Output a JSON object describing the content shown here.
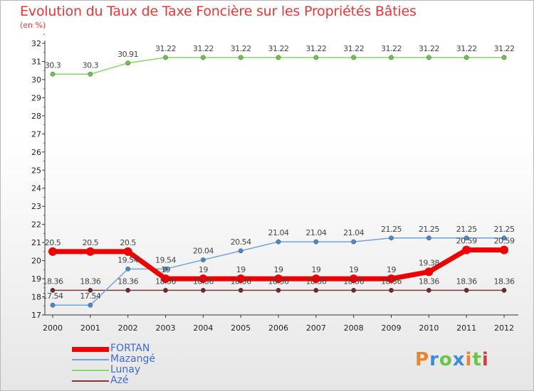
{
  "header": {
    "title": "Evolution du Taux de Taxe Foncière sur les Propriétés Bâties",
    "subtitle": "(en %)"
  },
  "colors": {
    "title": "#e03a3a",
    "axis": "#333333",
    "tick_label": "#222222",
    "data_label": "#444444"
  },
  "logo": {
    "letters": [
      "P",
      "r",
      "o",
      "x",
      "i",
      "t",
      "i"
    ],
    "colors": [
      "#e8842a",
      "#3a8fd8",
      "#6cc24a",
      "#3a8fd8",
      "#e8842a",
      "#6cc24a",
      "#d93a3a"
    ]
  },
  "chart_data": {
    "type": "line",
    "x": [
      "2000",
      "2001",
      "2002",
      "2003",
      "2004",
      "2005",
      "2006",
      "2007",
      "2008",
      "2009",
      "2010",
      "2011",
      "2012"
    ],
    "ylim": [
      17,
      32
    ],
    "yticks": [
      17,
      18,
      19,
      20,
      21,
      22,
      23,
      24,
      25,
      26,
      27,
      28,
      29,
      30,
      31,
      32
    ],
    "grid": false,
    "legend_position": "bottom-left",
    "series": [
      {
        "name": "Lunay",
        "color": "#88d86a",
        "marker": "#6cc24a",
        "width": 1.5,
        "values": [
          30.3,
          30.3,
          30.91,
          31.22,
          31.22,
          31.22,
          31.22,
          31.22,
          31.22,
          31.22,
          31.22,
          31.22,
          31.22
        ],
        "labels": [
          "30.3",
          "30.3",
          "30.91",
          "31.22",
          "31.22",
          "31.22",
          "31.22",
          "31.22",
          "31.22",
          "31.22",
          "31.22",
          "31.22",
          "31.22"
        ]
      },
      {
        "name": "Azé",
        "color": "#7a3a3a",
        "marker": "#6a2a2a",
        "width": 1.5,
        "values": [
          18.36,
          18.36,
          18.36,
          18.36,
          18.36,
          18.36,
          18.36,
          18.36,
          18.36,
          18.36,
          18.36,
          18.36,
          18.36
        ],
        "labels": [
          "18.36",
          "18.36",
          "18.36",
          "18.36",
          "18.36",
          "18.36",
          "18.36",
          "18.36",
          "18.36",
          "18.36",
          "18.36",
          "18.36",
          "18.36"
        ]
      },
      {
        "name": "Mazangé",
        "color": "#6fa4d8",
        "marker": "#4a86c8",
        "width": 1.5,
        "values": [
          17.54,
          17.54,
          19.54,
          19.54,
          20.04,
          20.54,
          21.04,
          21.04,
          21.04,
          21.25,
          21.25,
          21.25,
          21.25
        ],
        "labels": [
          "17.54",
          "17.54",
          "19.54",
          "19.54",
          "20.04",
          "20.54",
          "21.04",
          "21.04",
          "21.04",
          "21.25",
          "21.25",
          "21.25",
          "21.25"
        ]
      },
      {
        "name": "FORTAN",
        "color": "#ee0000",
        "marker": "#ee0000",
        "width": 7,
        "values": [
          20.5,
          20.5,
          20.5,
          19,
          19,
          19,
          19,
          19,
          19,
          19,
          19.38,
          20.59,
          20.59
        ],
        "labels": [
          "20.5",
          "20.5",
          "20.5",
          "19",
          "19",
          "19",
          "19",
          "19",
          "19",
          "19",
          "19.38",
          "20.59",
          "20.59"
        ]
      }
    ],
    "legend": [
      {
        "name": "FORTAN",
        "color": "#ee0000",
        "text_color": "#3a6ad8",
        "width": 7
      },
      {
        "name": "Mazangé",
        "color": "#6fa4d8",
        "text_color": "#3a6ad8",
        "width": 2
      },
      {
        "name": "Lunay",
        "color": "#88d86a",
        "text_color": "#3a6ad8",
        "width": 2
      },
      {
        "name": "Azé",
        "color": "#7a3a3a",
        "text_color": "#3a6ad8",
        "width": 2
      }
    ]
  }
}
